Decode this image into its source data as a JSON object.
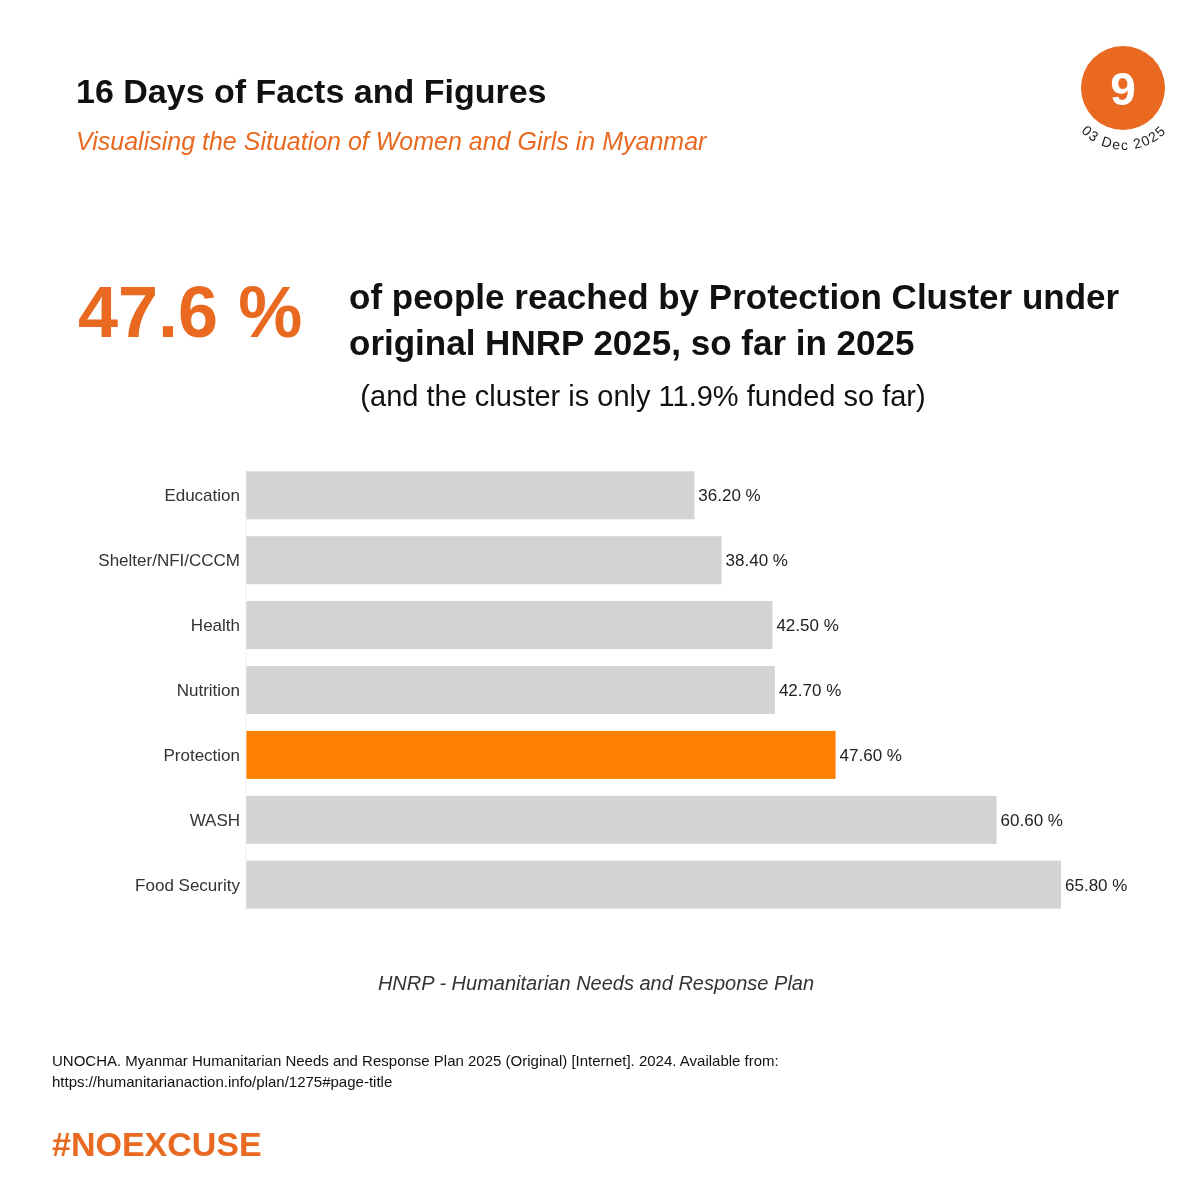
{
  "chart_data": {
    "type": "bar",
    "orientation": "horizontal",
    "relative": false,
    "title": "16 Days of Facts and Figures",
    "subtitle": "Visualising the Situation of Women and Girls in Myanmar",
    "categories": [
      "Education",
      "Shelter/NFI/CCCM",
      "Health",
      "Nutrition",
      "Protection",
      "WASH",
      "Food Security"
    ],
    "values": [
      36.2,
      38.4,
      42.5,
      42.7,
      47.6,
      60.6,
      65.8
    ],
    "colors": [
      "#d3d3d3",
      "#d3d3d3",
      "#d3d3d3",
      "#d3d3d3",
      "#ff7f00",
      "#d3d3d3",
      "#d3d3d3"
    ],
    "value_labels": [
      "36.20 %",
      "38.40 %",
      "42.50 %",
      "42.70 %",
      "47.60 %",
      "60.60 %",
      "65.80 %"
    ],
    "annotations": [
      "47.6 %",
      "of people reached by Protection Cluster under original HNRP 2025, so far in 2025",
      "(and the cluster is only 11.9% funded so far)",
      "HNRP - Humanitarian Needs and Response Plan",
      "UNOCHA. Myanmar Humanitarian Needs and Response Plan 2025 (Original) [Internet]. 2024. Available from: https://humanitarianaction.info/plan/1275#page-title",
      "#NOEXCUSE",
      "9",
      "03 Dec 2025"
    ]
  }
}
